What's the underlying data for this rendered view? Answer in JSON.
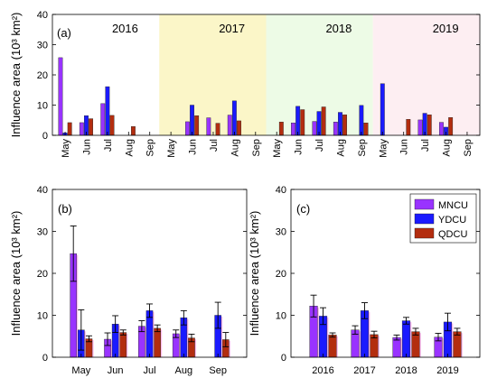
{
  "colors": {
    "MNCU": "#9933ff",
    "YDCU": "#1a1aff",
    "QDCU": "#b32d0f",
    "shade_2017": "#fbf6c8",
    "shade_2018": "#edfbe6",
    "shade_2019": "#fdeef2",
    "shadow": "#ff9fe6"
  },
  "y_axis_title": "Influence area (10³ km²)",
  "chart_data": [
    {
      "type": "bar",
      "panel_label": "(a)",
      "year_labels": [
        "2016",
        "2017",
        "2018",
        "2019"
      ],
      "xlabel": "",
      "ylabel": "Influence area (10³ km²)",
      "ylim": [
        0,
        40
      ],
      "yticks": [
        0,
        10,
        20,
        30,
        40
      ],
      "grid": false,
      "months": [
        "May",
        "Jun",
        "Jul",
        "Aug",
        "Sep"
      ],
      "series": [
        {
          "name": "MNCU",
          "values": [
            25.7,
            4.2,
            10.5,
            null,
            null,
            null,
            4.5,
            5.8,
            6.7,
            null,
            null,
            4.1,
            4.6,
            4.4,
            null,
            null,
            null,
            5.1,
            4.3,
            null
          ]
        },
        {
          "name": "YDCU",
          "values": [
            0.8,
            6.5,
            16.1,
            null,
            null,
            null,
            10.0,
            null,
            11.4,
            null,
            null,
            9.6,
            7.9,
            7.6,
            9.9,
            17.1,
            null,
            7.3,
            2.7,
            null
          ]
        },
        {
          "name": "QDCU",
          "values": [
            4.2,
            5.5,
            6.6,
            2.9,
            null,
            null,
            6.5,
            4.0,
            4.8,
            null,
            4.4,
            8.5,
            9.4,
            6.8,
            4.1,
            null,
            5.3,
            6.8,
            5.9,
            null
          ]
        }
      ]
    },
    {
      "type": "bar",
      "panel_label": "(b)",
      "categories": [
        "May",
        "Jun",
        "Jul",
        "Aug",
        "Sep"
      ],
      "xlabel": "",
      "ylabel": "Influence area (10³ km²)",
      "ylim": [
        0,
        40
      ],
      "yticks": [
        0,
        10,
        20,
        30,
        40
      ],
      "grid": false,
      "series": [
        {
          "name": "MNCU",
          "values": [
            24.7,
            4.3,
            7.4,
            5.6,
            null
          ],
          "errors": [
            6.6,
            1.5,
            1.3,
            0.9,
            null
          ]
        },
        {
          "name": "YDCU",
          "values": [
            6.5,
            7.9,
            11.1,
            9.4,
            10.0
          ],
          "errors": [
            4.8,
            2.0,
            1.6,
            1.7,
            3.1
          ]
        },
        {
          "name": "QDCU",
          "values": [
            4.4,
            5.9,
            6.9,
            4.6,
            4.2
          ],
          "errors": [
            0.7,
            0.6,
            0.8,
            0.9,
            1.7
          ]
        }
      ]
    },
    {
      "type": "bar",
      "panel_label": "(c)",
      "categories": [
        "2016",
        "2017",
        "2018",
        "2019"
      ],
      "xlabel": "",
      "ylabel": "Influence area (10³ km²)",
      "ylim": [
        0,
        40
      ],
      "yticks": [
        0,
        10,
        20,
        30,
        40
      ],
      "grid": false,
      "legend": {
        "placement": "top-right",
        "entries": [
          "MNCU",
          "YDCU",
          "QDCU"
        ]
      },
      "series": [
        {
          "name": "MNCU",
          "values": [
            12.2,
            6.5,
            4.7,
            4.8
          ],
          "errors": [
            2.6,
            1.0,
            0.6,
            0.9
          ]
        },
        {
          "name": "YDCU",
          "values": [
            9.8,
            11.1,
            8.7,
            8.4
          ],
          "errors": [
            2.0,
            1.9,
            0.8,
            2.1
          ]
        },
        {
          "name": "QDCU",
          "values": [
            5.3,
            5.4,
            6.1,
            6.1
          ],
          "errors": [
            0.5,
            0.8,
            0.8,
            0.8
          ]
        }
      ]
    }
  ]
}
